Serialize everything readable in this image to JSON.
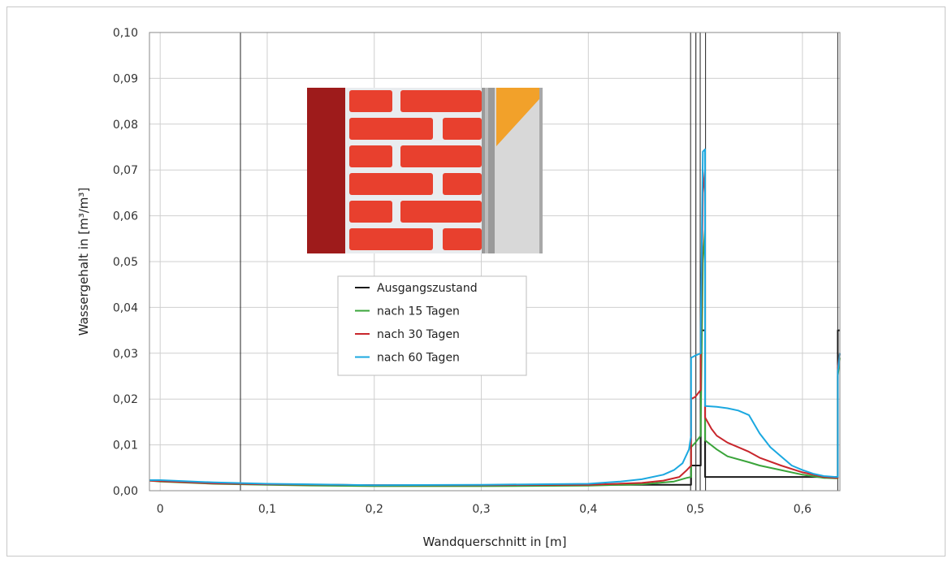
{
  "chart_data": {
    "type": "line",
    "xlabel": "Wandquerschnitt in [m]",
    "ylabel": "Wassergehalt in [m³/m³]",
    "xlim": [
      -0.01,
      0.635
    ],
    "ylim": [
      0,
      0.1
    ],
    "x_ticks": [
      "0",
      "0,1",
      "0,2",
      "0,3",
      "0,4",
      "0,5",
      "0,6"
    ],
    "y_ticks": [
      "0,00",
      "0,01",
      "0,02",
      "0,03",
      "0,04",
      "0,05",
      "0,06",
      "0,07",
      "0,08",
      "0,09",
      "0,10"
    ],
    "grid": true,
    "legend_position": "center-left",
    "layer_boundaries": [
      0.075,
      0.4955,
      0.5005,
      0.5045,
      0.5095,
      0.633
    ],
    "series": [
      {
        "name": "Ausgangszustand",
        "color": "#1a1a1a",
        "points": [
          [
            -0.01,
            0.0023
          ],
          [
            0.0,
            0.0022
          ],
          [
            0.05,
            0.0016
          ],
          [
            0.1,
            0.0014
          ],
          [
            0.2,
            0.0012
          ],
          [
            0.3,
            0.0012
          ],
          [
            0.4,
            0.0013
          ],
          [
            0.496,
            0.0013
          ],
          [
            0.496,
            0.0055
          ],
          [
            0.505,
            0.0055
          ],
          [
            0.505,
            0.035
          ],
          [
            0.509,
            0.035
          ],
          [
            0.509,
            0.003
          ],
          [
            0.633,
            0.003
          ],
          [
            0.633,
            0.035
          ],
          [
            0.635,
            0.035
          ]
        ]
      },
      {
        "name": "nach 15 Tagen",
        "color": "#3aa43a",
        "points": [
          [
            -0.01,
            0.0022
          ],
          [
            0.0,
            0.002
          ],
          [
            0.05,
            0.0015
          ],
          [
            0.1,
            0.0013
          ],
          [
            0.15,
            0.0011
          ],
          [
            0.2,
            0.001
          ],
          [
            0.3,
            0.001
          ],
          [
            0.4,
            0.0011
          ],
          [
            0.45,
            0.0014
          ],
          [
            0.48,
            0.002
          ],
          [
            0.492,
            0.0028
          ],
          [
            0.496,
            0.003
          ],
          [
            0.496,
            0.0095
          ],
          [
            0.5,
            0.0105
          ],
          [
            0.505,
            0.012
          ],
          [
            0.505,
            0.015
          ],
          [
            0.507,
            0.05
          ],
          [
            0.509,
            0.057
          ],
          [
            0.509,
            0.011
          ],
          [
            0.52,
            0.009
          ],
          [
            0.53,
            0.0075
          ],
          [
            0.55,
            0.0062
          ],
          [
            0.56,
            0.0055
          ],
          [
            0.58,
            0.0045
          ],
          [
            0.6,
            0.0035
          ],
          [
            0.62,
            0.0028
          ],
          [
            0.631,
            0.0027
          ],
          [
            0.633,
            0.0027
          ],
          [
            0.633,
            0.025
          ],
          [
            0.635,
            0.029
          ]
        ]
      },
      {
        "name": "nach 30 Tagen",
        "color": "#c8262c",
        "points": [
          [
            -0.01,
            0.0022
          ],
          [
            0.0,
            0.0021
          ],
          [
            0.05,
            0.0016
          ],
          [
            0.1,
            0.0014
          ],
          [
            0.2,
            0.0012
          ],
          [
            0.3,
            0.0012
          ],
          [
            0.4,
            0.0013
          ],
          [
            0.45,
            0.0017
          ],
          [
            0.47,
            0.0022
          ],
          [
            0.485,
            0.003
          ],
          [
            0.492,
            0.0045
          ],
          [
            0.496,
            0.0055
          ],
          [
            0.496,
            0.02
          ],
          [
            0.5,
            0.0205
          ],
          [
            0.505,
            0.022
          ],
          [
            0.505,
            0.03
          ],
          [
            0.507,
            0.065
          ],
          [
            0.509,
            0.07
          ],
          [
            0.509,
            0.016
          ],
          [
            0.515,
            0.0135
          ],
          [
            0.52,
            0.012
          ],
          [
            0.53,
            0.0105
          ],
          [
            0.55,
            0.0085
          ],
          [
            0.56,
            0.0072
          ],
          [
            0.58,
            0.0055
          ],
          [
            0.6,
            0.004
          ],
          [
            0.62,
            0.003
          ],
          [
            0.631,
            0.0028
          ],
          [
            0.633,
            0.0028
          ],
          [
            0.633,
            0.027
          ],
          [
            0.635,
            0.03
          ]
        ]
      },
      {
        "name": "nach 60 Tagen",
        "color": "#1ba8e0",
        "points": [
          [
            -0.01,
            0.0023
          ],
          [
            0.0,
            0.0023
          ],
          [
            0.05,
            0.0018
          ],
          [
            0.1,
            0.0015
          ],
          [
            0.2,
            0.0012
          ],
          [
            0.3,
            0.0013
          ],
          [
            0.4,
            0.0015
          ],
          [
            0.43,
            0.002
          ],
          [
            0.45,
            0.0025
          ],
          [
            0.47,
            0.0035
          ],
          [
            0.48,
            0.0045
          ],
          [
            0.488,
            0.006
          ],
          [
            0.494,
            0.009
          ],
          [
            0.496,
            0.012
          ],
          [
            0.496,
            0.029
          ],
          [
            0.5,
            0.0295
          ],
          [
            0.505,
            0.03
          ],
          [
            0.505,
            0.035
          ],
          [
            0.507,
            0.074
          ],
          [
            0.509,
            0.0745
          ],
          [
            0.509,
            0.0185
          ],
          [
            0.52,
            0.0183
          ],
          [
            0.53,
            0.018
          ],
          [
            0.54,
            0.0175
          ],
          [
            0.55,
            0.0165
          ],
          [
            0.56,
            0.0125
          ],
          [
            0.57,
            0.0095
          ],
          [
            0.58,
            0.0075
          ],
          [
            0.59,
            0.0055
          ],
          [
            0.6,
            0.0045
          ],
          [
            0.61,
            0.0037
          ],
          [
            0.62,
            0.0032
          ],
          [
            0.631,
            0.003
          ],
          [
            0.633,
            0.003
          ],
          [
            0.633,
            0.026
          ],
          [
            0.635,
            0.03
          ]
        ]
      }
    ]
  },
  "legend": {
    "items": [
      {
        "label": "Ausgangszustand",
        "color": "#1a1a1a"
      },
      {
        "label": "nach 15 Tagen",
        "color": "#3aa43a"
      },
      {
        "label": "nach 30 Tagen",
        "color": "#c8262c"
      },
      {
        "label": "nach 60 Tagen",
        "color": "#1ba8e0"
      }
    ]
  },
  "wall_illustration": {
    "icon": "brick-wall-cross-section-icon",
    "colors": {
      "dark_brick": "#9e1b1b",
      "brick": "#e8402e",
      "mortar": "#e9ecef",
      "plaster": "#9a9a9a",
      "insulation": "#d8d8d8",
      "insulation_corner": "#f2a12a"
    }
  }
}
